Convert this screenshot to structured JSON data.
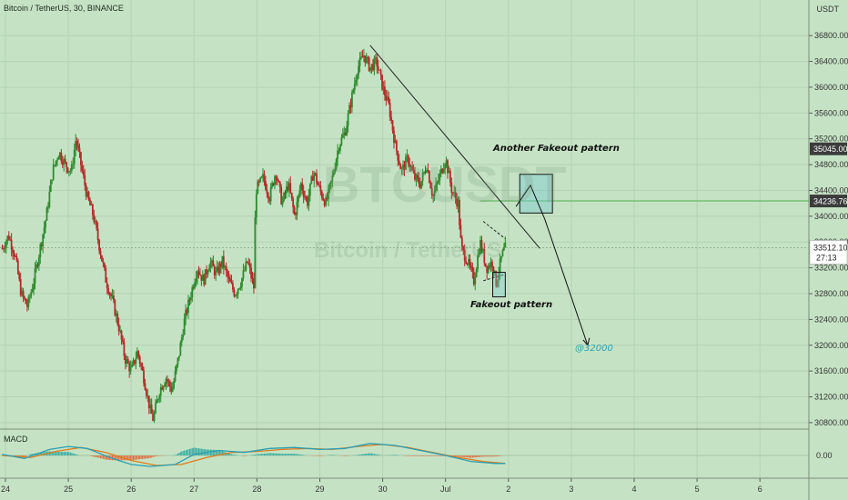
{
  "header": {
    "symbol_title": "Bitcoin / TetherUS, 30, BINANCE",
    "currency": "USDT"
  },
  "watermark": {
    "ticker": "BTCUSDT",
    "name": "Bitcoin / TetherUS"
  },
  "indicator": {
    "name": "MACD",
    "zero_label": "0.00"
  },
  "annotations": {
    "fakeout": "Fakeout pattern",
    "another_fakeout": "Another Fakeout pattern",
    "target": "@32000"
  },
  "price_badges": {
    "upper": {
      "label": "35045.00",
      "value": 35045.0,
      "bg": "#3c3c3c"
    },
    "hline": {
      "label": "34236.76",
      "value": 34236.76,
      "bg": "#3c3c3c"
    },
    "current": {
      "label": "33512.10",
      "value": 33512.1,
      "countdown": "27:13"
    }
  },
  "chart_data": {
    "type": "candlestick",
    "x_ticks": [
      "24",
      "25",
      "26",
      "27",
      "28",
      "29",
      "30",
      "Jul",
      "2",
      "3",
      "4",
      "5",
      "6"
    ],
    "y_ticks": [
      30800,
      31200,
      31600,
      32000,
      32400,
      32800,
      33200,
      33600,
      34000,
      34400,
      34800,
      35200,
      35600,
      36000,
      36400,
      36800
    ],
    "ylim": [
      30700,
      37000
    ],
    "colors": {
      "up": "#2e8b2e",
      "down": "#b42a2a",
      "macd": "#2a9fb3",
      "signal": "#e07b1c"
    },
    "close_path": [
      [
        23.95,
        33500
      ],
      [
        24.05,
        33700
      ],
      [
        24.15,
        33400
      ],
      [
        24.25,
        32800
      ],
      [
        24.35,
        32600
      ],
      [
        24.45,
        33000
      ],
      [
        24.55,
        33500
      ],
      [
        24.65,
        34000
      ],
      [
        24.75,
        34700
      ],
      [
        24.85,
        35000
      ],
      [
        24.95,
        34800
      ],
      [
        25.05,
        34700
      ],
      [
        25.12,
        35200
      ],
      [
        25.2,
        34800
      ],
      [
        25.3,
        34300
      ],
      [
        25.4,
        34000
      ],
      [
        25.5,
        33500
      ],
      [
        25.6,
        33000
      ],
      [
        25.7,
        32700
      ],
      [
        25.8,
        32300
      ],
      [
        25.9,
        31800
      ],
      [
        26.0,
        31600
      ],
      [
        26.1,
        31900
      ],
      [
        26.2,
        31500
      ],
      [
        26.3,
        31000
      ],
      [
        26.35,
        30850
      ],
      [
        26.45,
        31300
      ],
      [
        26.55,
        31500
      ],
      [
        26.65,
        31300
      ],
      [
        26.75,
        31800
      ],
      [
        26.85,
        32400
      ],
      [
        26.95,
        32800
      ],
      [
        27.05,
        33200
      ],
      [
        27.15,
        33000
      ],
      [
        27.25,
        33300
      ],
      [
        27.35,
        33100
      ],
      [
        27.45,
        33300
      ],
      [
        27.55,
        33000
      ],
      [
        27.65,
        32800
      ],
      [
        27.75,
        33000
      ],
      [
        27.85,
        33300
      ],
      [
        27.95,
        32900
      ],
      [
        27.98,
        34400
      ],
      [
        28.1,
        34600
      ],
      [
        28.2,
        34300
      ],
      [
        28.3,
        34700
      ],
      [
        28.4,
        34200
      ],
      [
        28.5,
        34500
      ],
      [
        28.6,
        34000
      ],
      [
        28.7,
        34500
      ],
      [
        28.8,
        34200
      ],
      [
        28.9,
        34700
      ],
      [
        29.0,
        34400
      ],
      [
        29.1,
        34200
      ],
      [
        29.2,
        34600
      ],
      [
        29.3,
        35100
      ],
      [
        29.4,
        35300
      ],
      [
        29.5,
        35800
      ],
      [
        29.6,
        36300
      ],
      [
        29.7,
        36500
      ],
      [
        29.8,
        36300
      ],
      [
        29.9,
        36400
      ],
      [
        30.0,
        36000
      ],
      [
        30.1,
        35700
      ],
      [
        30.2,
        35100
      ],
      [
        30.3,
        34700
      ],
      [
        30.4,
        34900
      ],
      [
        30.5,
        34600
      ],
      [
        30.6,
        34500
      ],
      [
        30.7,
        34800
      ],
      [
        30.8,
        34300
      ],
      [
        30.9,
        34600
      ],
      [
        31.0,
        34900
      ],
      [
        31.1,
        34400
      ],
      [
        31.2,
        34200
      ],
      [
        31.25,
        33500
      ],
      [
        31.35,
        33300
      ],
      [
        31.45,
        33000
      ],
      [
        31.55,
        33600
      ],
      [
        31.65,
        33200
      ],
      [
        31.75,
        33300
      ],
      [
        31.8,
        32950
      ],
      [
        31.9,
        33400
      ],
      [
        31.95,
        33510
      ]
    ],
    "macd": [
      [
        23.95,
        0.1
      ],
      [
        24.3,
        -0.3
      ],
      [
        24.7,
        0.6
      ],
      [
        25.0,
        0.9
      ],
      [
        25.3,
        0.7
      ],
      [
        25.7,
        -0.3
      ],
      [
        26.0,
        -0.9
      ],
      [
        26.3,
        -1.1
      ],
      [
        26.7,
        -0.9
      ],
      [
        27.0,
        0.1
      ],
      [
        27.4,
        0.5
      ],
      [
        27.8,
        0.3
      ],
      [
        28.2,
        0.7
      ],
      [
        28.6,
        0.8
      ],
      [
        29.0,
        0.6
      ],
      [
        29.4,
        0.7
      ],
      [
        29.8,
        1.2
      ],
      [
        30.2,
        1.0
      ],
      [
        30.6,
        0.5
      ],
      [
        31.0,
        0.0
      ],
      [
        31.4,
        -0.6
      ],
      [
        31.8,
        -0.8
      ],
      [
        31.95,
        -0.8
      ]
    ],
    "signal": [
      [
        23.95,
        0.0
      ],
      [
        24.4,
        -0.2
      ],
      [
        24.8,
        0.4
      ],
      [
        25.2,
        0.8
      ],
      [
        25.6,
        0.3
      ],
      [
        26.0,
        -0.5
      ],
      [
        26.4,
        -1.0
      ],
      [
        26.8,
        -0.9
      ],
      [
        27.2,
        -0.2
      ],
      [
        27.6,
        0.3
      ],
      [
        28.0,
        0.4
      ],
      [
        28.4,
        0.6
      ],
      [
        28.8,
        0.7
      ],
      [
        29.2,
        0.6
      ],
      [
        29.6,
        0.9
      ],
      [
        30.0,
        1.1
      ],
      [
        30.4,
        0.8
      ],
      [
        30.8,
        0.3
      ],
      [
        31.2,
        -0.2
      ],
      [
        31.6,
        -0.6
      ],
      [
        31.95,
        -0.8
      ]
    ],
    "trendline": [
      [
        29.8,
        36650
      ],
      [
        32.5,
        33500
      ]
    ],
    "horizontal_level": 34236.76,
    "fakeout_box": {
      "x": [
        31.75,
        31.95
      ],
      "y": [
        32750,
        33130
      ]
    },
    "another_fakeout_box": {
      "x": [
        32.18,
        32.7
      ],
      "y": [
        34050,
        34650
      ]
    },
    "projection_path": [
      [
        32.12,
        34150
      ],
      [
        32.35,
        34480
      ],
      [
        32.58,
        33950
      ],
      [
        33.26,
        32000
      ]
    ],
    "pattern_lines": [
      [
        [
          31.6,
          33920
        ],
        [
          31.95,
          33650
        ]
      ],
      [
        [
          31.6,
          33000
        ],
        [
          31.95,
          33100
        ]
      ]
    ]
  }
}
